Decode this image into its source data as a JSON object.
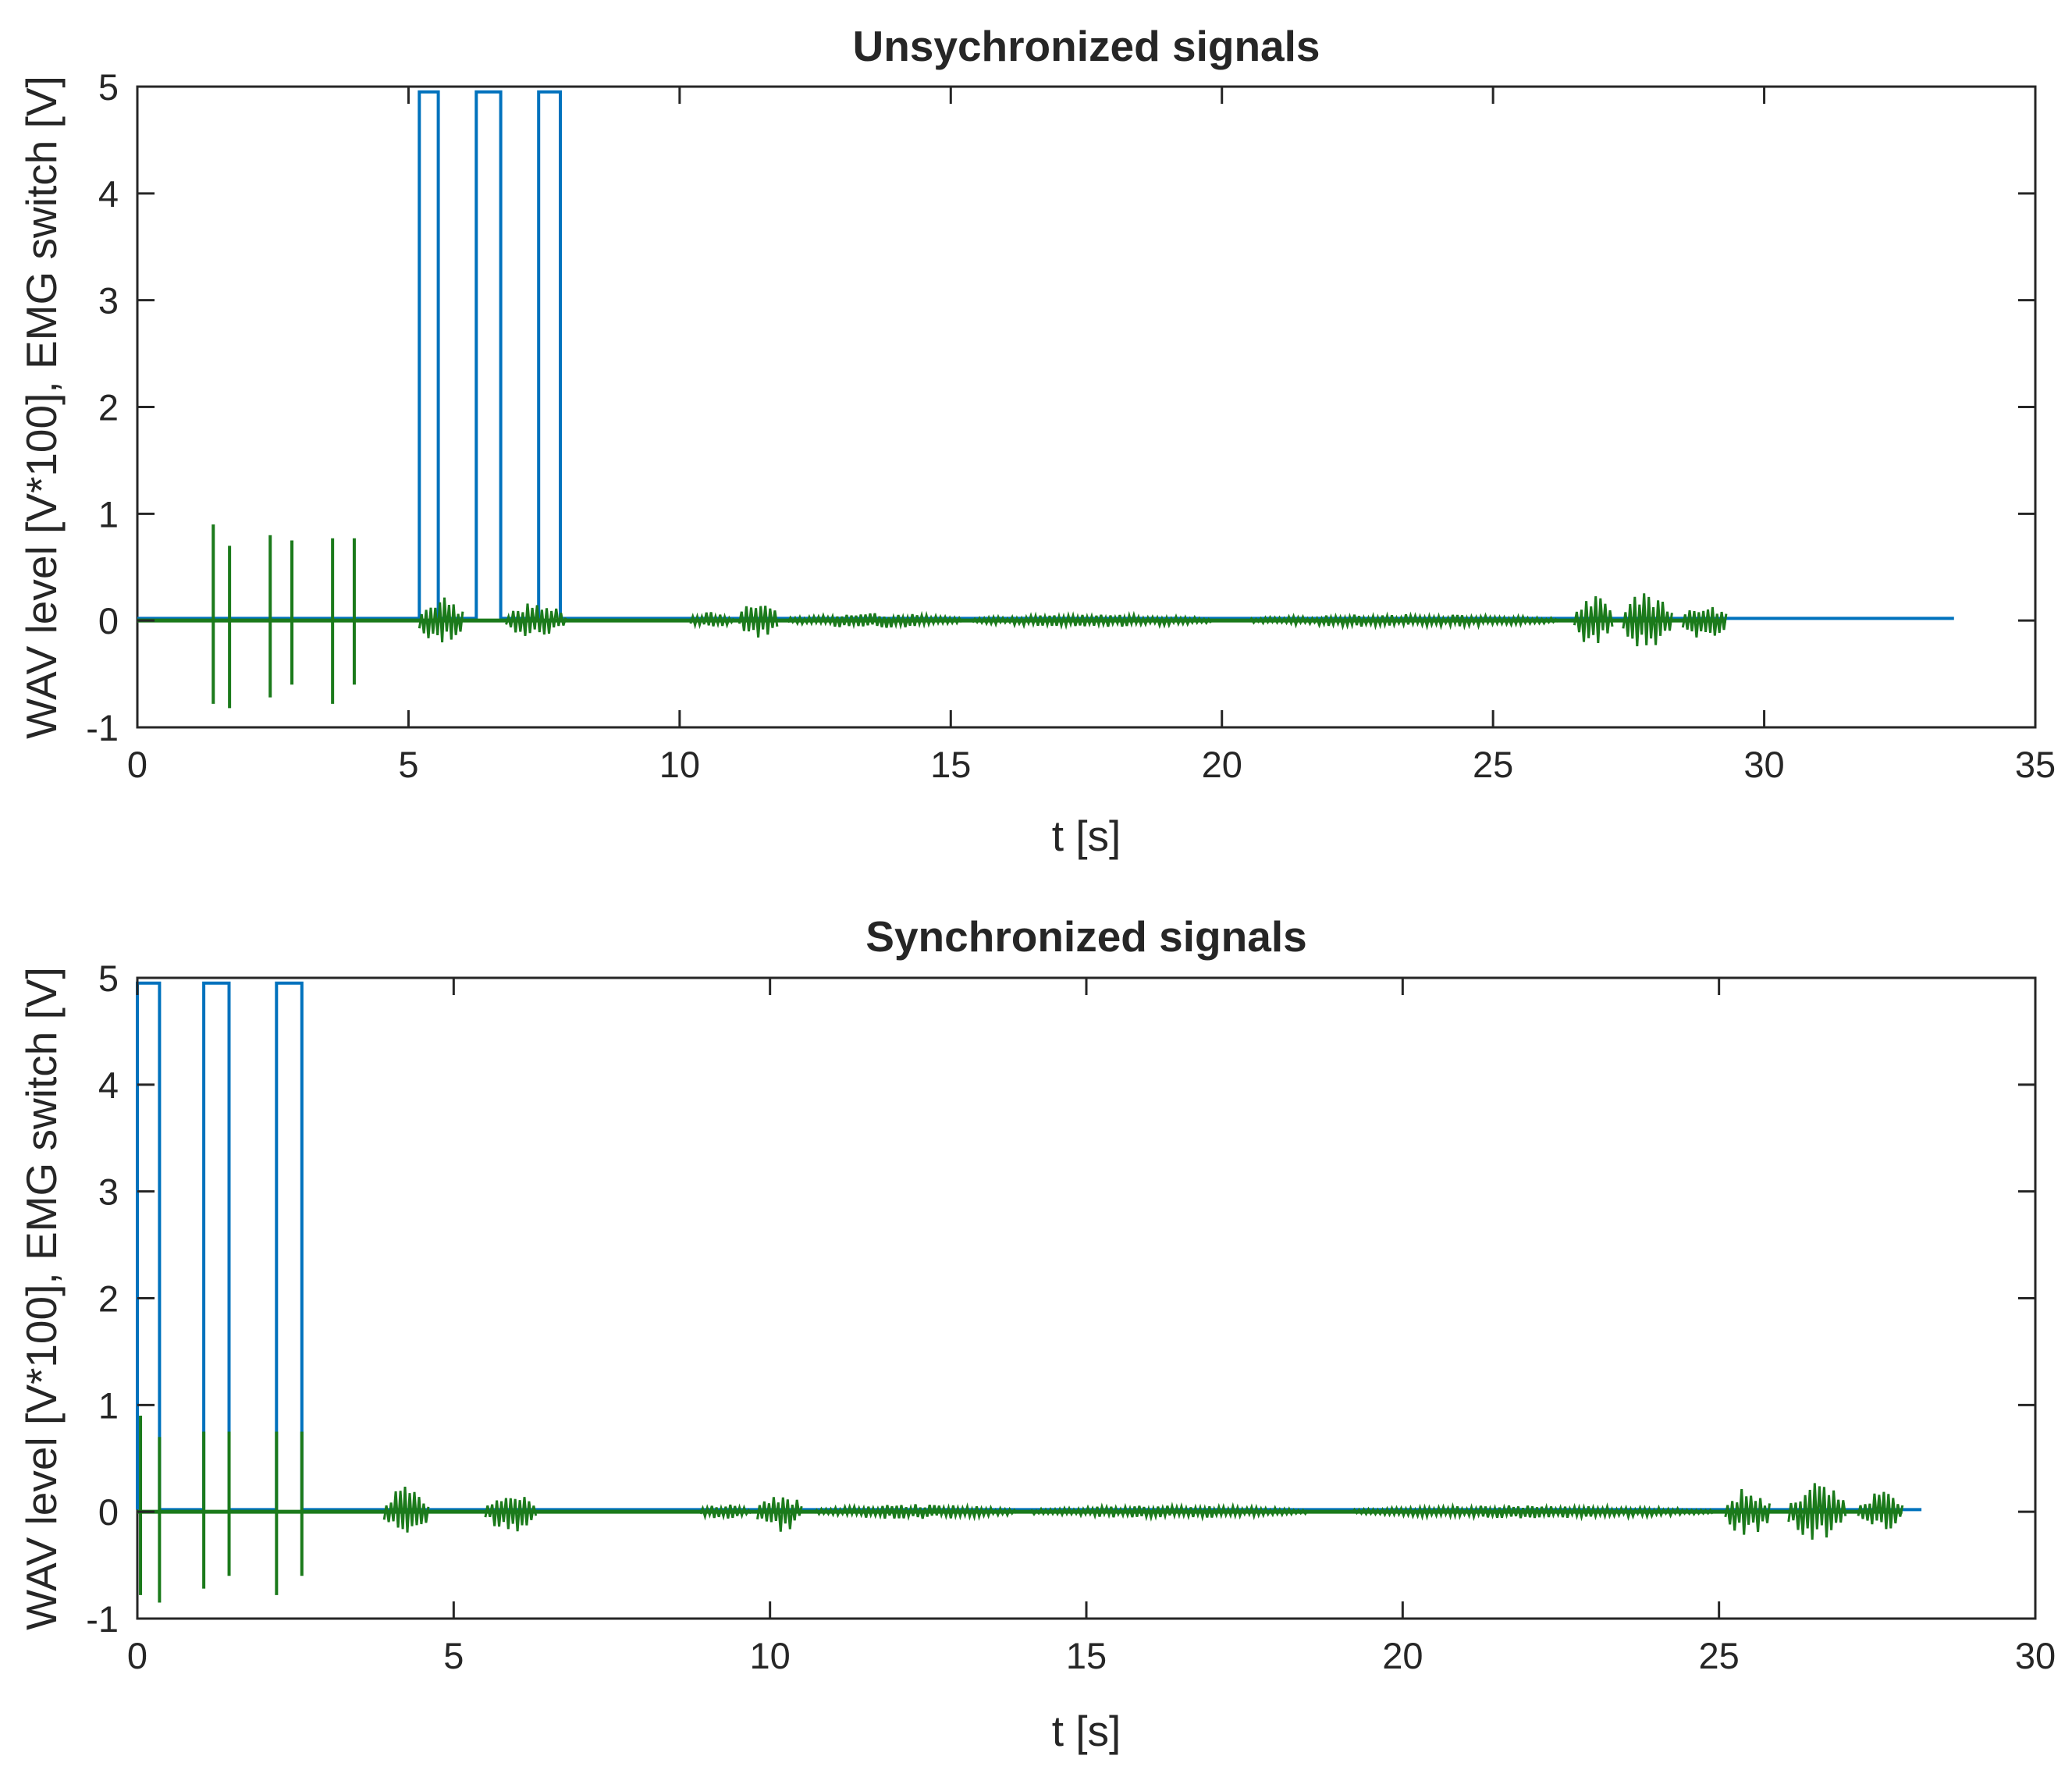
{
  "chart_data": [
    {
      "type": "line",
      "title": "Unsychronized signals",
      "xlabel": "t [s]",
      "ylabel": "WAV level [V*100], EMG switch [V]",
      "xlim": [
        0,
        35
      ],
      "ylim": [
        -1,
        5
      ],
      "xticks": [
        "0",
        "5",
        "10",
        "15",
        "20",
        "25",
        "30",
        "35"
      ],
      "yticks": [
        "-1",
        "0",
        "1",
        "2",
        "3",
        "4",
        "5"
      ],
      "grid": false,
      "series": [
        {
          "name": "EMG switch",
          "color": "#0072BD",
          "x": [
            0,
            5.2,
            5.2,
            5.55,
            5.55,
            6.25,
            6.25,
            6.7,
            6.7,
            7.4,
            7.4,
            7.8,
            7.8,
            33.5
          ],
          "y": [
            0.02,
            0.02,
            4.95,
            4.95,
            0.02,
            0.02,
            4.95,
            4.95,
            0.02,
            0.02,
            4.95,
            4.95,
            0.02,
            0.02
          ]
        },
        {
          "name": "WAV level",
          "color": "#1B7A1B",
          "baseline_end": 29.3,
          "spikes": [
            {
              "x": 1.4,
              "max": 0.9,
              "min": -0.78
            },
            {
              "x": 1.7,
              "max": 0.7,
              "min": -0.82
            },
            {
              "x": 2.45,
              "max": 0.8,
              "min": -0.72
            },
            {
              "x": 2.85,
              "max": 0.75,
              "min": -0.6
            },
            {
              "x": 3.6,
              "max": 0.77,
              "min": -0.78
            },
            {
              "x": 4.0,
              "max": 0.77,
              "min": -0.6
            }
          ],
          "bursts": [
            {
              "x0": 5.2,
              "x1": 6.0,
              "amp": 0.25
            },
            {
              "x0": 6.8,
              "x1": 7.9,
              "amp": 0.18
            },
            {
              "x0": 10.2,
              "x1": 11.0,
              "amp": 0.08
            },
            {
              "x0": 11.1,
              "x1": 11.8,
              "amp": 0.2
            },
            {
              "x0": 12.0,
              "x1": 15.2,
              "amp": 0.07
            },
            {
              "x0": 15.4,
              "x1": 19.8,
              "amp": 0.06
            },
            {
              "x0": 20.5,
              "x1": 26.2,
              "amp": 0.06
            },
            {
              "x0": 26.5,
              "x1": 27.2,
              "amp": 0.25
            },
            {
              "x0": 27.4,
              "x1": 28.3,
              "amp": 0.28
            },
            {
              "x0": 28.5,
              "x1": 29.3,
              "amp": 0.2
            }
          ]
        }
      ]
    },
    {
      "type": "line",
      "title": "Synchronized signals",
      "xlabel": "t [s]",
      "ylabel": "WAV level [V*100], EMG switch [V]",
      "xlim": [
        0,
        30
      ],
      "ylim": [
        -1,
        5
      ],
      "xticks": [
        "0",
        "5",
        "10",
        "15",
        "20",
        "25",
        "30"
      ],
      "yticks": [
        "-1",
        "0",
        "1",
        "2",
        "3",
        "4",
        "5"
      ],
      "grid": false,
      "series": [
        {
          "name": "EMG switch",
          "color": "#0072BD",
          "x": [
            0,
            0,
            0.35,
            0.35,
            1.05,
            1.05,
            1.45,
            1.45,
            2.2,
            2.2,
            2.6,
            2.6,
            28.2
          ],
          "y": [
            0.02,
            4.95,
            4.95,
            0.02,
            0.02,
            4.95,
            4.95,
            0.02,
            0.02,
            4.95,
            4.95,
            0.02,
            0.02
          ]
        },
        {
          "name": "WAV level",
          "color": "#1B7A1B",
          "baseline_end": 27.9,
          "spikes": [
            {
              "x": 0.05,
              "max": 0.9,
              "min": -0.78
            },
            {
              "x": 0.35,
              "max": 0.7,
              "min": -0.85
            },
            {
              "x": 1.05,
              "max": 0.75,
              "min": -0.72
            },
            {
              "x": 1.45,
              "max": 0.75,
              "min": -0.6
            },
            {
              "x": 2.2,
              "max": 0.75,
              "min": -0.78
            },
            {
              "x": 2.6,
              "max": 0.75,
              "min": -0.6
            }
          ],
          "bursts": [
            {
              "x0": 3.9,
              "x1": 4.6,
              "amp": 0.25
            },
            {
              "x0": 5.5,
              "x1": 6.3,
              "amp": 0.2
            },
            {
              "x0": 8.9,
              "x1": 9.7,
              "amp": 0.08
            },
            {
              "x0": 9.8,
              "x1": 10.5,
              "amp": 0.2
            },
            {
              "x0": 10.7,
              "x1": 13.9,
              "amp": 0.07
            },
            {
              "x0": 14.1,
              "x1": 18.5,
              "amp": 0.06
            },
            {
              "x0": 19.2,
              "x1": 24.9,
              "amp": 0.06
            },
            {
              "x0": 25.1,
              "x1": 25.8,
              "amp": 0.25
            },
            {
              "x0": 26.1,
              "x1": 27.0,
              "amp": 0.28
            },
            {
              "x0": 27.2,
              "x1": 27.9,
              "amp": 0.2
            }
          ]
        }
      ]
    }
  ]
}
